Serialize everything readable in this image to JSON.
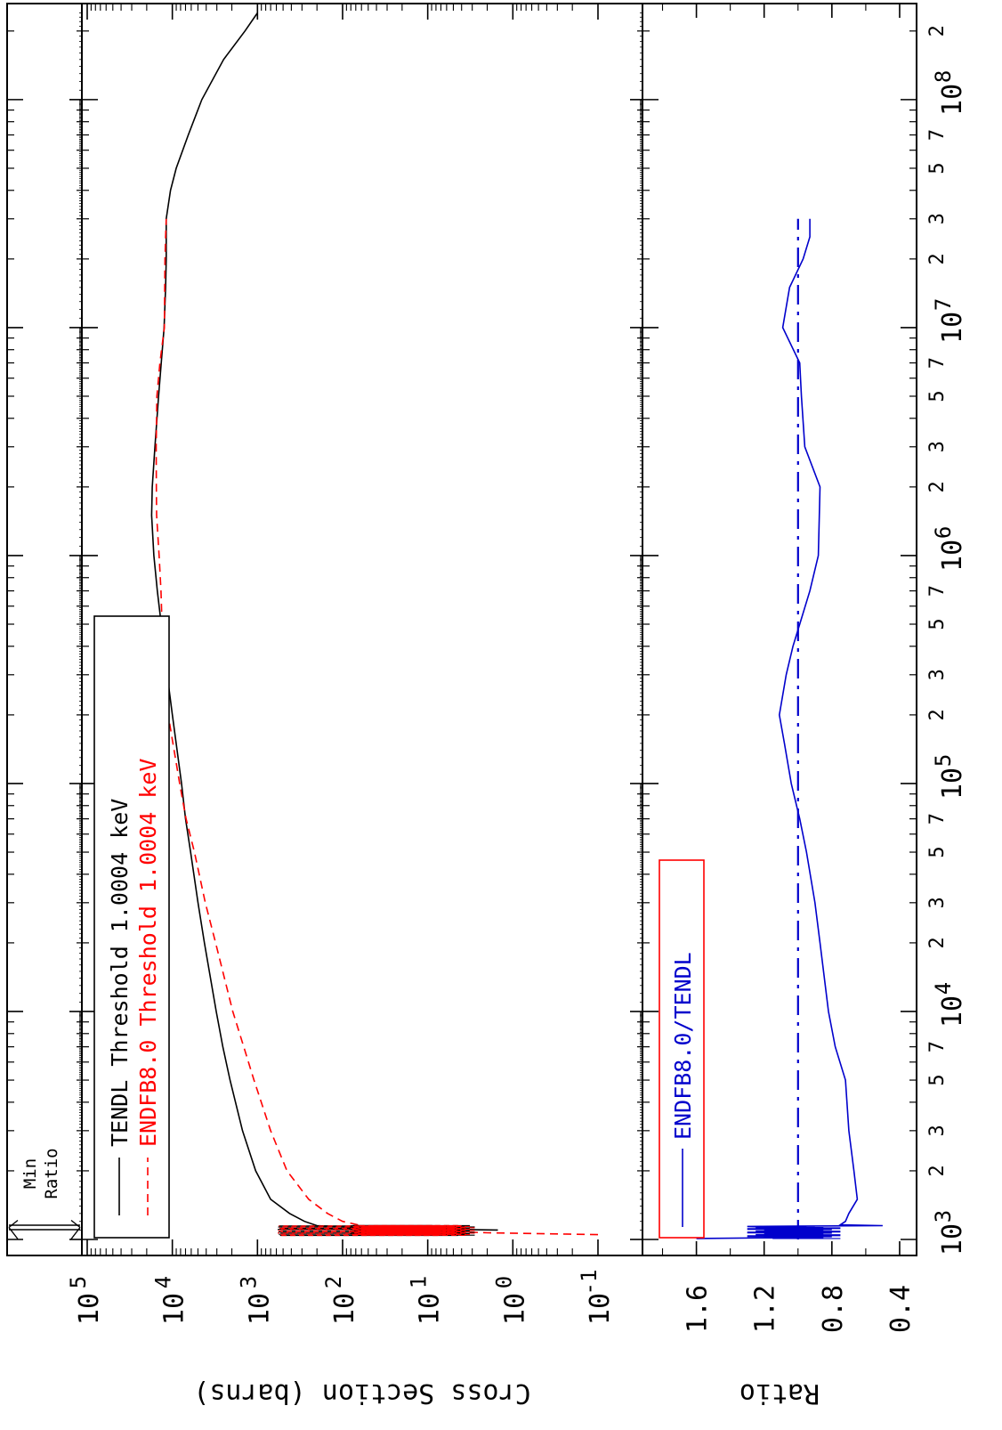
{
  "chart_data": {
    "type": "line",
    "orientation": "rotated-90-clockwise",
    "energy_axis": {
      "scale": "log",
      "range": [
        1000,
        250000000
      ],
      "major_ticks": [
        1000,
        10000,
        100000,
        1000000,
        10000000,
        100000000
      ],
      "tick_labels": [
        "10^3",
        "10^4",
        "10^5",
        "10^6",
        "10^7",
        "10^8"
      ],
      "minor_labels": [
        "2",
        "3",
        "5",
        "7"
      ]
    },
    "cross_section_axis": {
      "label": "Cross Section (barns)",
      "scale": "log",
      "range": [
        0.03,
        100000
      ],
      "tick_values": [
        0.1,
        1,
        10,
        100,
        1000,
        10000,
        100000
      ],
      "tick_labels": [
        "10^-1",
        "10^0",
        "10^1",
        "10^2",
        "10^3",
        "10^4",
        "10^5"
      ]
    },
    "ratio_axis": {
      "label": "Ratio",
      "scale": "linear",
      "range": [
        0.3,
        1.85
      ],
      "tick_values": [
        0.4,
        0.8,
        1.2,
        1.6
      ],
      "tick_labels": [
        "0.4",
        "0.8",
        "1.2",
        "1.6"
      ]
    },
    "min_ratio_label": [
      "Min",
      "Ratio"
    ],
    "legend_top": [
      {
        "name": "TENDL Threshold 1.0004 keV",
        "color": "#000000",
        "dash": "solid"
      },
      {
        "name": "ENDFB8.0 Threshold 1.0004 keV",
        "color": "#ff0000",
        "dash": "dashed"
      }
    ],
    "legend_bottom": [
      {
        "name": "ENDFB8.0/TENDL",
        "color": "#0000cc",
        "dash": "solid"
      }
    ],
    "series_top": [
      {
        "name": "TENDL",
        "color": "#000000",
        "dash": "solid",
        "points": [
          [
            1100,
            1.5
          ],
          [
            1120,
            45
          ],
          [
            1150,
            200
          ],
          [
            1200,
            280
          ],
          [
            1300,
            420
          ],
          [
            1500,
            700
          ],
          [
            2000,
            1050
          ],
          [
            3000,
            1500
          ],
          [
            5000,
            2100
          ],
          [
            7000,
            2550
          ],
          [
            10000,
            3050
          ],
          [
            20000,
            4200
          ],
          [
            30000,
            5000
          ],
          [
            50000,
            6100
          ],
          [
            70000,
            7000
          ],
          [
            100000,
            7800
          ],
          [
            200000,
            10000
          ],
          [
            300000,
            11500
          ],
          [
            500000,
            13500
          ],
          [
            700000,
            15000
          ],
          [
            1000000,
            16500
          ],
          [
            1500000,
            17500
          ],
          [
            2000000,
            17200
          ],
          [
            3000000,
            16000
          ],
          [
            5000000,
            14500
          ],
          [
            7000000,
            13500
          ],
          [
            10000000,
            12500
          ],
          [
            15000000,
            12000
          ],
          [
            20000000,
            11800
          ],
          [
            30000000,
            11800
          ],
          [
            40000000,
            10500
          ],
          [
            50000000,
            9000
          ],
          [
            70000000,
            6500
          ],
          [
            100000000,
            4500
          ],
          [
            150000000,
            2500
          ],
          [
            200000000,
            1400
          ],
          [
            240000000,
            1000
          ]
        ]
      },
      {
        "name": "ENDFB8.0",
        "color": "#ff0000",
        "dash": "dashed",
        "points": [
          [
            1050,
            0.1
          ],
          [
            1070,
            2
          ],
          [
            1100,
            15
          ],
          [
            1150,
            60
          ],
          [
            1200,
            100
          ],
          [
            1300,
            150
          ],
          [
            1500,
            250
          ],
          [
            2000,
            450
          ],
          [
            3000,
            700
          ],
          [
            5000,
            1100
          ],
          [
            7000,
            1450
          ],
          [
            10000,
            1950
          ],
          [
            20000,
            3100
          ],
          [
            30000,
            4100
          ],
          [
            50000,
            5500
          ],
          [
            70000,
            6900
          ],
          [
            100000,
            8200
          ],
          [
            200000,
            11200
          ],
          [
            300000,
            12500
          ],
          [
            500000,
            13200
          ],
          [
            700000,
            13600
          ],
          [
            1000000,
            14300
          ],
          [
            1500000,
            15300
          ],
          [
            2000000,
            15400
          ],
          [
            3000000,
            15500
          ],
          [
            5000000,
            15200
          ],
          [
            7000000,
            14000
          ],
          [
            10000000,
            12400
          ],
          [
            15000000,
            12300
          ],
          [
            20000000,
            12200
          ],
          [
            25000000,
            12000
          ],
          [
            30000000,
            11800
          ]
        ]
      }
    ],
    "series_ratio": [
      {
        "name": "ENDFB8.0/TENDL",
        "color": "#0000cc",
        "dash": "solid",
        "points": [
          [
            1010,
            1.6
          ],
          [
            1020,
            1.0
          ],
          [
            1040,
            1.15
          ],
          [
            1060,
            0.95
          ],
          [
            1080,
            1.05
          ],
          [
            1100,
            0.95
          ],
          [
            1110,
            1.05
          ],
          [
            1120,
            1.0
          ],
          [
            1140,
            1.3
          ],
          [
            1150,
            0.5
          ],
          [
            1160,
            0.75
          ],
          [
            1200,
            0.72
          ],
          [
            1300,
            0.7
          ],
          [
            1500,
            0.65
          ],
          [
            2000,
            0.67
          ],
          [
            3000,
            0.7
          ],
          [
            5000,
            0.72
          ],
          [
            7000,
            0.78
          ],
          [
            10000,
            0.82
          ],
          [
            20000,
            0.87
          ],
          [
            30000,
            0.9
          ],
          [
            50000,
            0.95
          ],
          [
            70000,
            0.99
          ],
          [
            100000,
            1.04
          ],
          [
            150000,
            1.08
          ],
          [
            200000,
            1.11
          ],
          [
            300000,
            1.07
          ],
          [
            400000,
            1.03
          ],
          [
            500000,
            0.99
          ],
          [
            700000,
            0.93
          ],
          [
            1000000,
            0.88
          ],
          [
            2000000,
            0.87
          ],
          [
            3000000,
            0.96
          ],
          [
            5000000,
            0.98
          ],
          [
            7000000,
            0.99
          ],
          [
            10000000,
            1.09
          ],
          [
            15000000,
            1.05
          ],
          [
            20000000,
            0.97
          ],
          [
            25000000,
            0.93
          ],
          [
            30000000,
            0.93
          ]
        ]
      },
      {
        "name": "",
        "color": "#0000cc",
        "dash": "dashdot",
        "points": [
          [
            1000,
            1.0
          ],
          [
            30000000,
            1.0
          ]
        ]
      }
    ]
  }
}
